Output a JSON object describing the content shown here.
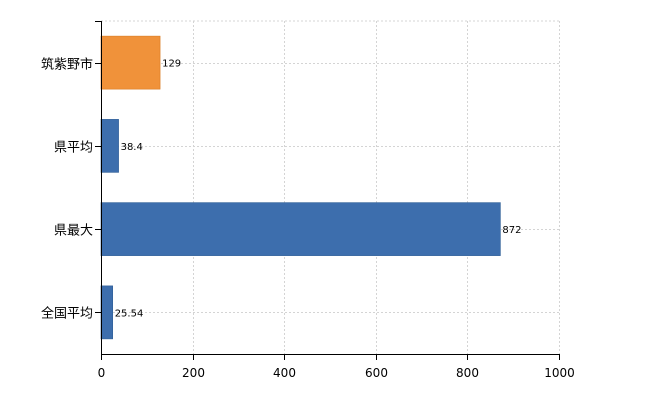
{
  "chart_data": {
    "type": "bar",
    "orientation": "horizontal",
    "categories": [
      "筑紫野市",
      "県平均",
      "県最大",
      "全国平均"
    ],
    "values": [
      129,
      38.4,
      872,
      25.54
    ],
    "value_labels": [
      "129",
      "38.4",
      "872",
      "25.54"
    ],
    "bar_colors": [
      "#F0923A",
      "#3D6EAD",
      "#3D6EAD",
      "#3D6EAD"
    ],
    "xlim": [
      0,
      1000
    ],
    "x_ticks": [
      0,
      200,
      400,
      600,
      800,
      1000
    ],
    "x_tick_labels": [
      "0",
      "200",
      "400",
      "600",
      "800",
      "1000"
    ],
    "grid": "vertical dashed",
    "legend": "none",
    "title": "",
    "xlabel": "",
    "ylabel": ""
  }
}
